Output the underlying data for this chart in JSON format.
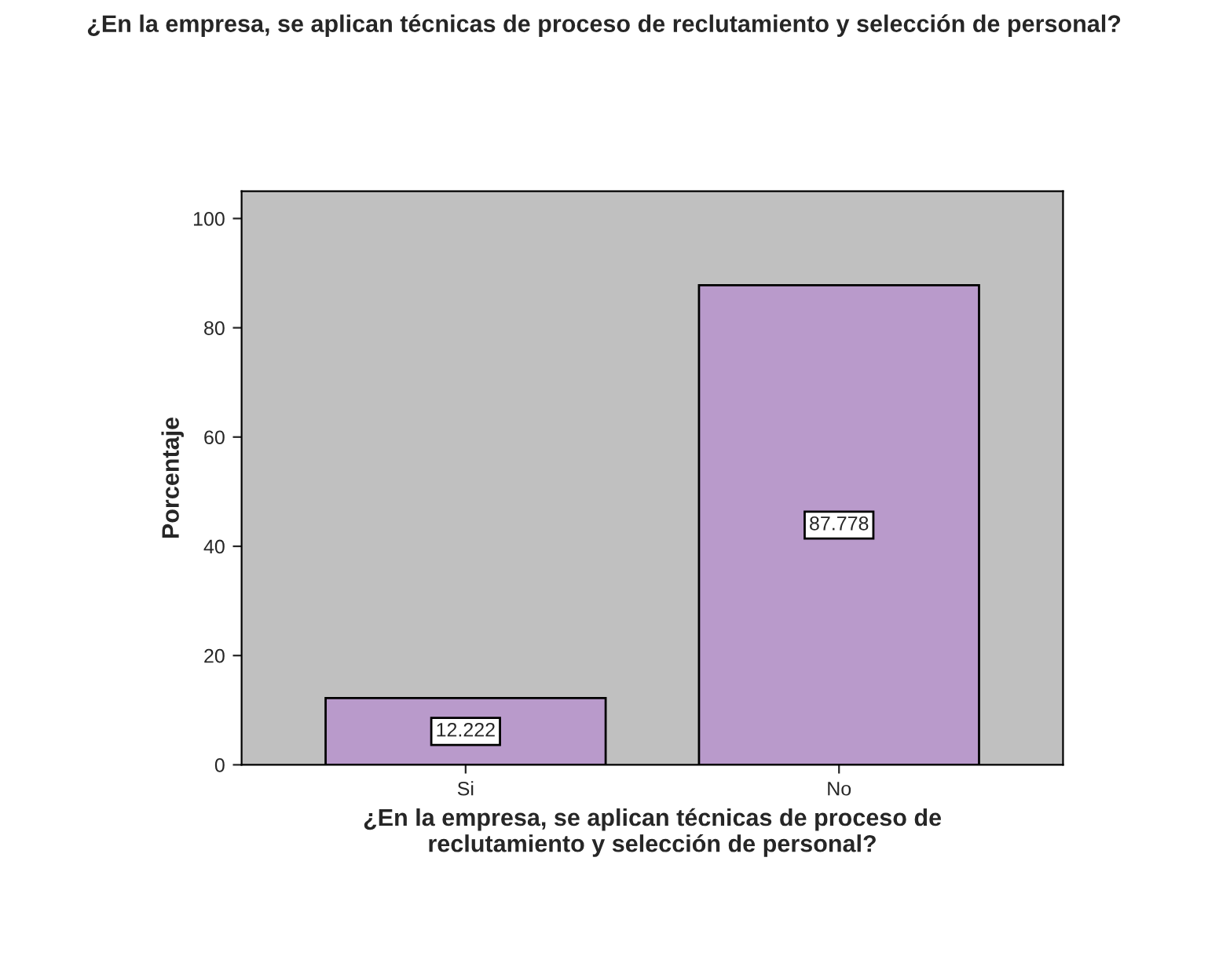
{
  "chart_data": {
    "type": "bar",
    "title": "¿En la empresa, se aplican técnicas de proceso de reclutamiento y selección de personal?",
    "xlabel": "¿En la empresa, se aplican técnicas de proceso de\nreclutamiento y selección de personal?",
    "ylabel": "Porcentaje",
    "categories": [
      "Si",
      "No"
    ],
    "values": [
      12.222,
      87.778
    ],
    "color": "#b99acb",
    "ylim": [
      0,
      105
    ],
    "yticks": [
      0,
      20,
      40,
      60,
      80,
      100
    ],
    "grid": false,
    "data_labels": true
  }
}
